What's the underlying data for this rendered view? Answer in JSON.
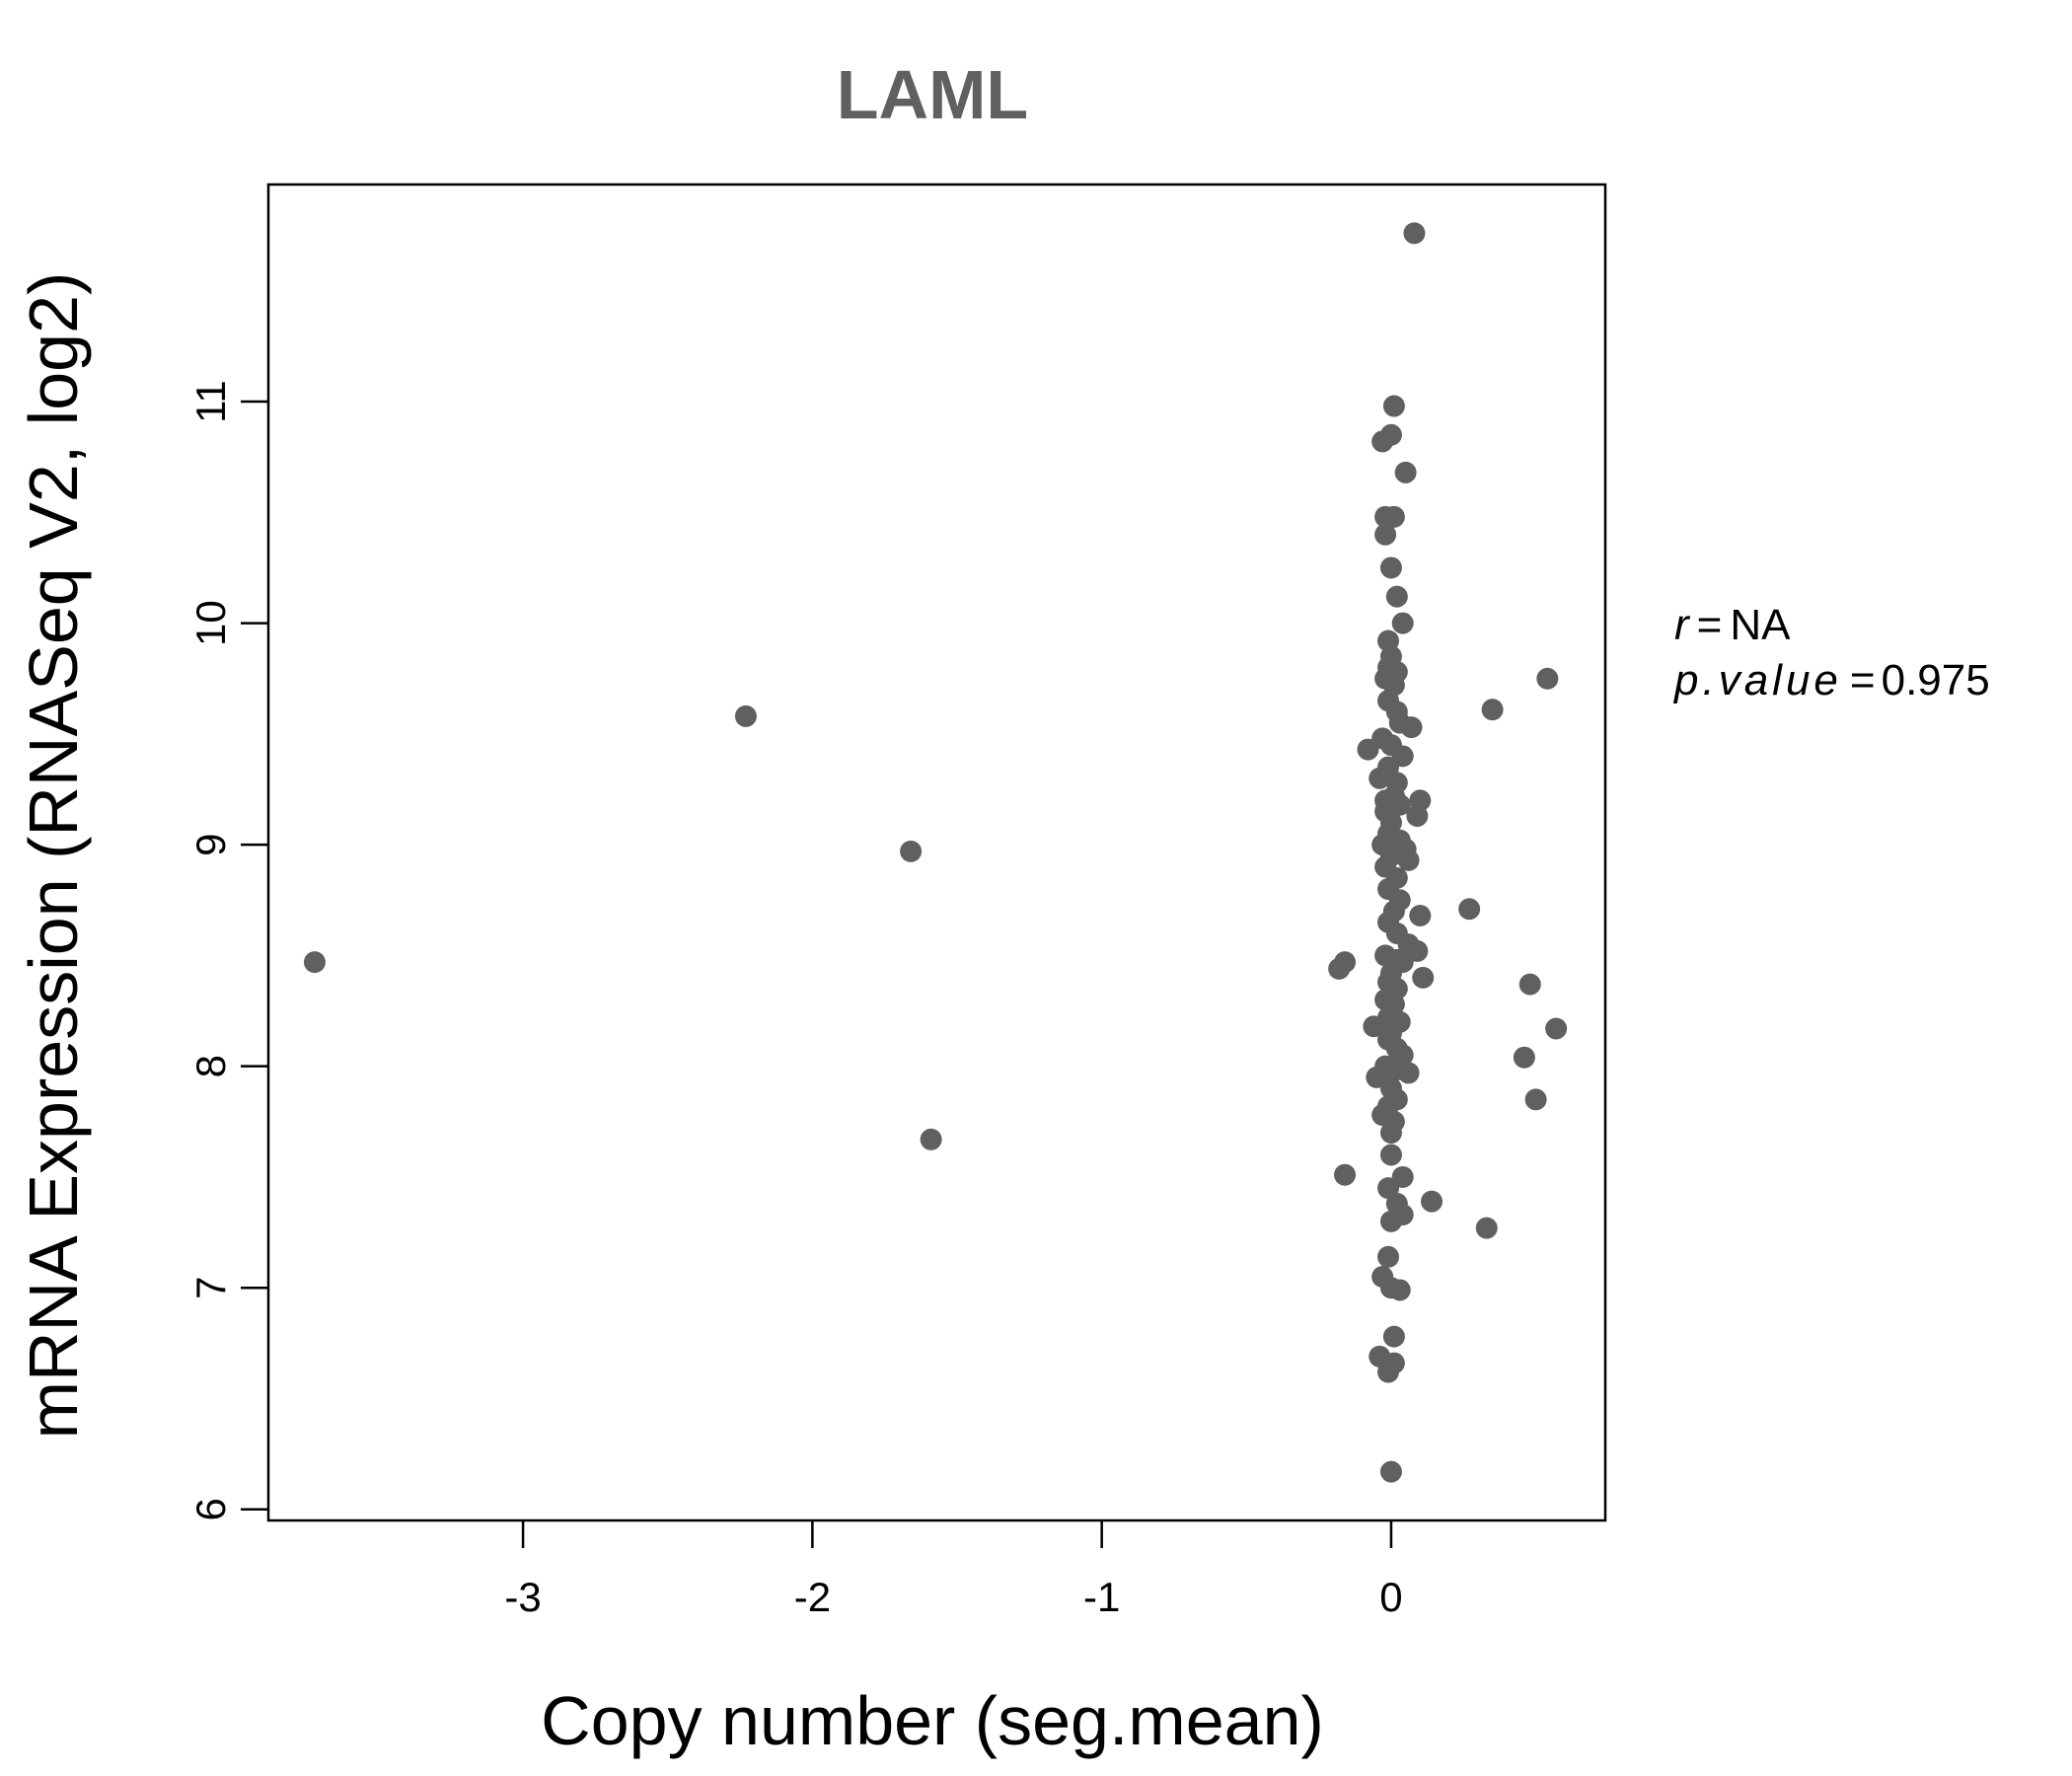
{
  "chart_data": {
    "type": "scatter",
    "title": "LAML",
    "xlabel": "Copy number (seg.mean)",
    "ylabel": "mRNA Expression (RNASeq V2, log2)",
    "xlim": [
      -3.88,
      0.74
    ],
    "ylim": [
      5.95,
      11.98
    ],
    "xticks": [
      "-3",
      "-2",
      "-1",
      "0"
    ],
    "yticks": [
      "6",
      "7",
      "8",
      "9",
      "10",
      "11"
    ],
    "grid": false,
    "point_color": "#606060",
    "annotation": {
      "r_label": "r",
      "r_value": "NA",
      "p_label": "p.value",
      "p_value": "0.975"
    },
    "series": [
      {
        "points": [
          [
            -3.72,
            8.47
          ],
          [
            -2.23,
            9.58
          ],
          [
            -1.66,
            8.97
          ],
          [
            -1.59,
            7.67
          ],
          [
            0.08,
            11.76
          ],
          [
            0.01,
            10.98
          ],
          [
            0.0,
            10.85
          ],
          [
            -0.03,
            10.82
          ],
          [
            0.05,
            10.68
          ],
          [
            -0.02,
            10.48
          ],
          [
            0.01,
            10.48
          ],
          [
            -0.02,
            10.4
          ],
          [
            0.0,
            10.25
          ],
          [
            0.02,
            10.12
          ],
          [
            0.04,
            10.0
          ],
          [
            -0.01,
            9.92
          ],
          [
            0.0,
            9.85
          ],
          [
            -0.01,
            9.8
          ],
          [
            0.02,
            9.78
          ],
          [
            -0.02,
            9.75
          ],
          [
            0.01,
            9.72
          ],
          [
            -0.01,
            9.65
          ],
          [
            0.02,
            9.6
          ],
          [
            0.03,
            9.55
          ],
          [
            0.07,
            9.53
          ],
          [
            -0.03,
            9.48
          ],
          [
            0.0,
            9.45
          ],
          [
            -0.08,
            9.43
          ],
          [
            0.04,
            9.4
          ],
          [
            -0.01,
            9.35
          ],
          [
            -0.04,
            9.3
          ],
          [
            0.02,
            9.28
          ],
          [
            0.01,
            9.22
          ],
          [
            -0.02,
            9.2
          ],
          [
            0.1,
            9.2
          ],
          [
            0.03,
            9.18
          ],
          [
            -0.02,
            9.15
          ],
          [
            0.09,
            9.13
          ],
          [
            0.0,
            9.1
          ],
          [
            -0.01,
            9.05
          ],
          [
            0.03,
            9.02
          ],
          [
            -0.03,
            9.0
          ],
          [
            0.05,
            8.98
          ],
          [
            0.0,
            8.95
          ],
          [
            0.06,
            8.93
          ],
          [
            -0.02,
            8.9
          ],
          [
            0.02,
            8.85
          ],
          [
            -0.01,
            8.8
          ],
          [
            0.03,
            8.75
          ],
          [
            0.01,
            8.7
          ],
          [
            0.27,
            8.71
          ],
          [
            0.1,
            8.68
          ],
          [
            -0.01,
            8.65
          ],
          [
            0.02,
            8.6
          ],
          [
            0.06,
            8.55
          ],
          [
            0.09,
            8.52
          ],
          [
            -0.02,
            8.5
          ],
          [
            0.02,
            8.48
          ],
          [
            0.04,
            8.47
          ],
          [
            -0.16,
            8.47
          ],
          [
            -0.18,
            8.44
          ],
          [
            0.0,
            8.42
          ],
          [
            0.11,
            8.4
          ],
          [
            -0.01,
            8.38
          ],
          [
            0.02,
            8.35
          ],
          [
            -0.02,
            8.3
          ],
          [
            0.01,
            8.28
          ],
          [
            -0.01,
            8.22
          ],
          [
            0.03,
            8.2
          ],
          [
            -0.06,
            8.18
          ],
          [
            0.0,
            8.15
          ],
          [
            0.48,
            8.37
          ],
          [
            0.57,
            8.17
          ],
          [
            -0.01,
            8.12
          ],
          [
            0.02,
            8.08
          ],
          [
            0.04,
            8.05
          ],
          [
            0.46,
            8.04
          ],
          [
            -0.02,
            8.0
          ],
          [
            0.01,
            7.98
          ],
          [
            0.06,
            7.97
          ],
          [
            -0.05,
            7.95
          ],
          [
            0.0,
            7.9
          ],
          [
            0.02,
            7.85
          ],
          [
            0.5,
            7.85
          ],
          [
            -0.01,
            7.82
          ],
          [
            -0.03,
            7.78
          ],
          [
            0.01,
            7.75
          ],
          [
            0.0,
            7.7
          ],
          [
            0.0,
            7.6
          ],
          [
            -0.16,
            7.51
          ],
          [
            0.04,
            7.5
          ],
          [
            -0.01,
            7.45
          ],
          [
            0.14,
            7.39
          ],
          [
            0.02,
            7.38
          ],
          [
            0.04,
            7.33
          ],
          [
            0.0,
            7.3
          ],
          [
            0.33,
            7.27
          ],
          [
            -0.01,
            7.14
          ],
          [
            -0.03,
            7.05
          ],
          [
            0.0,
            7.0
          ],
          [
            0.03,
            6.99
          ],
          [
            0.01,
            6.78
          ],
          [
            -0.04,
            6.69
          ],
          [
            0.01,
            6.66
          ],
          [
            -0.01,
            6.62
          ],
          [
            0.0,
            6.17
          ],
          [
            0.54,
            9.75
          ],
          [
            0.35,
            9.61
          ]
        ]
      }
    ]
  }
}
